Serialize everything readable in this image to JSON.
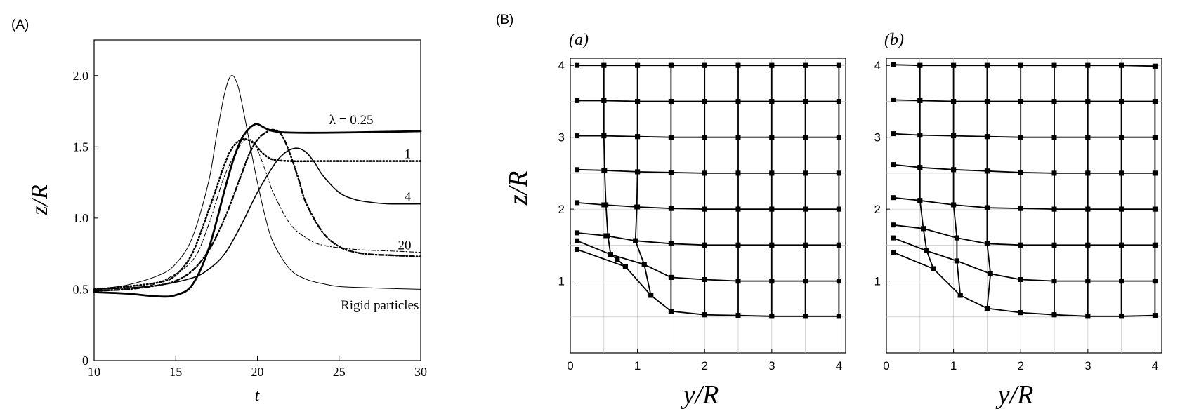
{
  "figure_labels": {
    "A": "(A)",
    "B": "(B)"
  },
  "chart_data": [
    {
      "type": "line",
      "panel": "(A)",
      "xlabel": "t",
      "ylabel": "z/R",
      "xlim": [
        10,
        30
      ],
      "ylim": [
        0,
        2.25
      ],
      "xticks": [
        "10",
        "15",
        "20",
        "25",
        "30"
      ],
      "yticks": [
        "0",
        "0.5",
        "1.0",
        "1.5",
        "2.0"
      ],
      "grid": false,
      "annotations": [
        {
          "text": "λ = 0.25",
          "x": 24.4,
          "y": 1.66
        },
        {
          "text": "1",
          "x": 29.0,
          "y": 1.42
        },
        {
          "text": "4",
          "x": 29.0,
          "y": 1.12
        },
        {
          "text": "20",
          "x": 28.6,
          "y": 0.78
        },
        {
          "text": "Rigid particles",
          "x": 25.1,
          "y": 0.36
        }
      ],
      "series": [
        {
          "style": "thin-solid",
          "x": [
            10,
            12,
            14,
            15,
            16,
            17,
            17.5,
            18,
            18.4,
            18.8,
            19.2,
            19.6,
            20,
            20.5,
            21,
            22,
            23,
            24,
            25,
            27,
            30
          ],
          "y": [
            0.5,
            0.53,
            0.6,
            0.68,
            0.86,
            1.25,
            1.58,
            1.88,
            2.0,
            1.93,
            1.72,
            1.48,
            1.25,
            1.0,
            0.82,
            0.64,
            0.57,
            0.54,
            0.52,
            0.51,
            0.5
          ]
        },
        {
          "style": "thick-solid",
          "x": [
            10,
            12,
            14,
            15,
            16,
            17,
            18,
            18.5,
            19,
            19.5,
            19.8,
            20,
            20.5,
            21,
            22,
            25,
            30
          ],
          "y": [
            0.48,
            0.47,
            0.45,
            0.46,
            0.53,
            0.78,
            1.2,
            1.4,
            1.55,
            1.63,
            1.655,
            1.66,
            1.63,
            1.61,
            1.6,
            1.6,
            1.61
          ]
        },
        {
          "style": "dotted",
          "x": [
            10,
            12,
            14,
            15,
            16,
            17,
            18,
            18.5,
            19,
            19.4,
            19.8,
            20.2,
            20.6,
            21,
            22,
            24,
            26,
            28,
            30
          ],
          "y": [
            0.5,
            0.52,
            0.55,
            0.6,
            0.75,
            1.05,
            1.38,
            1.5,
            1.55,
            1.55,
            1.52,
            1.47,
            1.43,
            1.41,
            1.4,
            1.4,
            1.4,
            1.4,
            1.4
          ]
        },
        {
          "style": "dash-dot",
          "x": [
            10,
            12,
            14,
            15,
            16,
            17,
            18,
            19,
            19.5,
            20,
            20.5,
            21,
            21.5,
            22,
            22.5,
            23,
            24,
            25,
            26,
            27,
            28,
            30
          ],
          "y": [
            0.49,
            0.5,
            0.53,
            0.56,
            0.63,
            0.77,
            1.0,
            1.3,
            1.45,
            1.55,
            1.6,
            1.62,
            1.58,
            1.45,
            1.28,
            1.1,
            0.9,
            0.8,
            0.76,
            0.745,
            0.74,
            0.73
          ]
        },
        {
          "style": "dash-dot-thin",
          "x": [
            10,
            12,
            14,
            16,
            17,
            18,
            19,
            19.5,
            19.7,
            20,
            20.5,
            21,
            22,
            23,
            24,
            26,
            28,
            30
          ],
          "y": [
            0.49,
            0.5,
            0.55,
            0.7,
            0.95,
            1.3,
            1.52,
            1.55,
            1.54,
            1.48,
            1.33,
            1.17,
            0.96,
            0.86,
            0.81,
            0.78,
            0.77,
            0.76
          ]
        },
        {
          "style": "solid-medium",
          "x": [
            10,
            12,
            14,
            16,
            17,
            18,
            19,
            20,
            21,
            21.5,
            22,
            22.5,
            23,
            23.5,
            24,
            25,
            26,
            27,
            28,
            30
          ],
          "y": [
            0.5,
            0.51,
            0.53,
            0.58,
            0.64,
            0.75,
            0.95,
            1.18,
            1.37,
            1.44,
            1.48,
            1.49,
            1.46,
            1.39,
            1.3,
            1.18,
            1.13,
            1.11,
            1.1,
            1.1
          ]
        }
      ]
    },
    {
      "type": "line",
      "panel": "(a)",
      "xlabel": "y/R",
      "ylabel": "z/R",
      "xlim": [
        0,
        4.1
      ],
      "ylim": [
        0,
        4.1
      ],
      "xticks": [
        "0",
        "1",
        "2",
        "3",
        "4"
      ],
      "yticks": [
        "1",
        "2",
        "3",
        "4"
      ],
      "grid": true,
      "series": [
        {
          "x": [
            0.1,
            0.5,
            1,
            1.5,
            2,
            2.5,
            3,
            3.5,
            4
          ],
          "y": [
            4.0,
            4.0,
            4.0,
            4.0,
            4.0,
            4.0,
            4.0,
            4.0,
            4.0
          ]
        },
        {
          "x": [
            0.1,
            0.5,
            1,
            1.5,
            2,
            2.5,
            3,
            3.5,
            4
          ],
          "y": [
            3.51,
            3.51,
            3.5,
            3.5,
            3.5,
            3.5,
            3.5,
            3.5,
            3.5
          ]
        },
        {
          "x": [
            0.1,
            0.5,
            1,
            1.5,
            2,
            2.5,
            3,
            3.5,
            4
          ],
          "y": [
            3.02,
            3.02,
            3.01,
            3.0,
            3.0,
            3.0,
            3.0,
            3.0,
            3.0
          ]
        },
        {
          "x": [
            0.1,
            0.5,
            1,
            1.5,
            2,
            2.5,
            3,
            3.5,
            4
          ],
          "y": [
            2.55,
            2.54,
            2.52,
            2.51,
            2.5,
            2.5,
            2.5,
            2.5,
            2.5
          ]
        },
        {
          "x": [
            0.1,
            0.5,
            1,
            1.5,
            2,
            2.5,
            3,
            3.5,
            4
          ],
          "y": [
            2.09,
            2.06,
            2.03,
            2.01,
            2.0,
            2.0,
            2.0,
            2.0,
            2.0
          ]
        },
        {
          "x": [
            0.1,
            0.53,
            0.97,
            1.5,
            2,
            2.5,
            3,
            3.5,
            4
          ],
          "y": [
            1.67,
            1.63,
            1.56,
            1.52,
            1.5,
            1.5,
            1.5,
            1.5,
            1.5
          ]
        },
        {
          "x": [
            0.1,
            0.6,
            1.1,
            1.5,
            2,
            2.5,
            3,
            3.5,
            4
          ],
          "y": [
            1.56,
            1.37,
            1.23,
            1.05,
            1.02,
            1.0,
            1.0,
            1.0,
            1.0
          ]
        },
        {
          "x": [
            0.1,
            0.82,
            1.2,
            1.5,
            2,
            2.5,
            3,
            3.5,
            4
          ],
          "y": [
            1.44,
            1.2,
            0.8,
            0.58,
            0.53,
            0.52,
            0.51,
            0.51,
            0.51
          ]
        },
        {
          "x": [
            0.5,
            0.5,
            0.5,
            0.51,
            0.53,
            0.56,
            0.6,
            0.7,
            0.82
          ],
          "y": [
            4.0,
            3.51,
            3.02,
            2.54,
            2.06,
            1.63,
            1.37,
            1.3,
            1.2
          ]
        },
        {
          "x": [
            1,
            1,
            1.0,
            1.0,
            0.99,
            0.97,
            1.1,
            1.2
          ],
          "y": [
            4.0,
            3.5,
            3.01,
            2.52,
            2.03,
            1.56,
            1.23,
            0.8
          ]
        },
        {
          "x": [
            1.5,
            1.5,
            1.5,
            1.5,
            1.5,
            1.5,
            1.5,
            1.5
          ],
          "y": [
            4.0,
            3.5,
            3.0,
            2.51,
            2.01,
            1.52,
            1.05,
            0.58
          ]
        },
        {
          "x": [
            2,
            2,
            2,
            2,
            2,
            2,
            2,
            2
          ],
          "y": [
            4.0,
            3.5,
            3.0,
            2.5,
            2.0,
            1.5,
            1.02,
            0.53
          ]
        },
        {
          "x": [
            2.5,
            2.5,
            2.5,
            2.5,
            2.5,
            2.5,
            2.5,
            2.5
          ],
          "y": [
            4.0,
            3.5,
            3.0,
            2.5,
            2.0,
            1.5,
            1.0,
            0.52
          ]
        },
        {
          "x": [
            3,
            3,
            3,
            3,
            3,
            3,
            3,
            3
          ],
          "y": [
            4.0,
            3.5,
            3.0,
            2.5,
            2.0,
            1.5,
            1.0,
            0.51
          ]
        },
        {
          "x": [
            3.5,
            3.5,
            3.5,
            3.5,
            3.5,
            3.5,
            3.5,
            3.5
          ],
          "y": [
            4.0,
            3.5,
            3.0,
            2.5,
            2.0,
            1.5,
            1.0,
            0.51
          ]
        },
        {
          "x": [
            4,
            4,
            4,
            4,
            4,
            4,
            4,
            4
          ],
          "y": [
            4.0,
            3.5,
            3.0,
            2.5,
            2.0,
            1.5,
            1.0,
            0.51
          ]
        }
      ]
    },
    {
      "type": "line",
      "panel": "(b)",
      "xlabel": "y/R",
      "ylabel": "",
      "xlim": [
        0,
        4.1
      ],
      "ylim": [
        0,
        4.1
      ],
      "xticks": [
        "0",
        "1",
        "2",
        "3",
        "4"
      ],
      "yticks": [
        "1",
        "2",
        "3",
        "4"
      ],
      "grid": true,
      "series": [
        {
          "x": [
            0.1,
            0.5,
            1,
            1.5,
            2,
            2.5,
            3,
            3.5,
            4
          ],
          "y": [
            4.01,
            4.0,
            4.0,
            4.0,
            4.0,
            4.0,
            4.0,
            4.0,
            3.99
          ]
        },
        {
          "x": [
            0.1,
            0.5,
            1,
            1.5,
            2,
            2.5,
            3,
            3.5,
            4
          ],
          "y": [
            3.52,
            3.51,
            3.5,
            3.5,
            3.5,
            3.5,
            3.5,
            3.5,
            3.5
          ]
        },
        {
          "x": [
            0.1,
            0.5,
            1,
            1.5,
            2,
            2.5,
            3,
            3.5,
            4
          ],
          "y": [
            3.05,
            3.03,
            3.02,
            3.01,
            3.0,
            3.0,
            3.0,
            3.0,
            3.0
          ]
        },
        {
          "x": [
            0.1,
            0.5,
            1,
            1.5,
            2,
            2.5,
            3,
            3.5,
            4
          ],
          "y": [
            2.62,
            2.58,
            2.55,
            2.53,
            2.51,
            2.5,
            2.5,
            2.5,
            2.5
          ]
        },
        {
          "x": [
            0.1,
            0.5,
            1,
            1.5,
            2,
            2.5,
            3,
            3.5,
            4
          ],
          "y": [
            2.16,
            2.12,
            2.06,
            2.02,
            2.01,
            2.0,
            2.0,
            2.0,
            2.0
          ]
        },
        {
          "x": [
            0.1,
            0.55,
            1.05,
            1.5,
            2,
            2.5,
            3,
            3.5,
            4
          ],
          "y": [
            1.78,
            1.73,
            1.6,
            1.52,
            1.5,
            1.5,
            1.5,
            1.5,
            1.5
          ]
        },
        {
          "x": [
            0.1,
            0.6,
            1.05,
            1.55,
            2,
            2.5,
            3,
            3.5,
            4
          ],
          "y": [
            1.6,
            1.42,
            1.28,
            1.1,
            1.02,
            1.0,
            1.0,
            1.0,
            1.0
          ]
        },
        {
          "x": [
            0.1,
            0.7,
            1.1,
            1.5,
            2,
            2.5,
            3,
            3.5,
            4
          ],
          "y": [
            1.4,
            1.17,
            0.8,
            0.62,
            0.56,
            0.53,
            0.51,
            0.51,
            0.52
          ]
        },
        {
          "x": [
            0.5,
            0.5,
            0.5,
            0.5,
            0.5,
            0.55,
            0.6,
            0.7
          ],
          "y": [
            4.0,
            3.51,
            3.03,
            2.58,
            2.12,
            1.73,
            1.42,
            1.17
          ]
        },
        {
          "x": [
            1,
            1,
            1,
            1.0,
            1.0,
            1.05,
            1.05,
            1.1
          ],
          "y": [
            4.0,
            3.5,
            3.02,
            2.55,
            2.06,
            1.6,
            1.28,
            0.8
          ]
        },
        {
          "x": [
            1.5,
            1.5,
            1.5,
            1.5,
            1.5,
            1.5,
            1.55,
            1.5
          ],
          "y": [
            4.0,
            3.5,
            3.01,
            2.53,
            2.02,
            1.52,
            1.1,
            0.62
          ]
        },
        {
          "x": [
            2,
            2,
            2,
            2,
            2,
            2,
            2,
            2
          ],
          "y": [
            4.0,
            3.5,
            3.0,
            2.51,
            2.01,
            1.5,
            1.02,
            0.56
          ]
        },
        {
          "x": [
            2.5,
            2.5,
            2.5,
            2.5,
            2.5,
            2.5,
            2.5,
            2.5
          ],
          "y": [
            4.0,
            3.5,
            3.0,
            2.5,
            2.0,
            1.5,
            1.0,
            0.53
          ]
        },
        {
          "x": [
            3,
            3,
            3,
            3,
            3,
            3,
            3,
            3
          ],
          "y": [
            4.0,
            3.5,
            3.0,
            2.5,
            2.0,
            1.5,
            1.0,
            0.51
          ]
        },
        {
          "x": [
            3.5,
            3.5,
            3.5,
            3.5,
            3.5,
            3.5,
            3.5,
            3.5
          ],
          "y": [
            4.0,
            3.5,
            3.0,
            2.5,
            2.0,
            1.5,
            1.0,
            0.51
          ]
        },
        {
          "x": [
            4,
            4,
            4,
            4,
            4,
            4,
            4,
            4
          ],
          "y": [
            3.99,
            3.5,
            3.0,
            2.5,
            2.0,
            1.5,
            1.0,
            0.52
          ]
        }
      ]
    }
  ]
}
